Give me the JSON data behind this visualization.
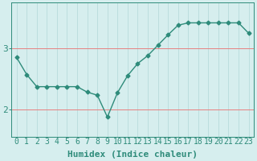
{
  "x": [
    0,
    1,
    2,
    3,
    4,
    5,
    6,
    7,
    8,
    9,
    10,
    11,
    12,
    13,
    14,
    15,
    16,
    17,
    18,
    19,
    20,
    21,
    22,
    23
  ],
  "y": [
    2.85,
    2.57,
    2.37,
    2.37,
    2.37,
    2.37,
    2.37,
    2.28,
    2.23,
    1.87,
    2.27,
    2.55,
    2.75,
    2.88,
    3.05,
    3.22,
    3.38,
    3.42,
    3.42,
    3.42,
    3.42,
    3.42,
    3.42,
    3.25
  ],
  "line_color": "#2e8b7a",
  "marker": "D",
  "bg_color": "#d6eeee",
  "grid_color_h": "#e88080",
  "grid_color_v": "#b8dcdc",
  "xlabel": "Humidex (Indice chaleur)",
  "yticks": [
    2,
    3
  ],
  "ylim": [
    1.55,
    3.75
  ],
  "xlim": [
    -0.5,
    23.5
  ],
  "xlabel_fontsize": 7,
  "tick_fontsize": 7,
  "line_width": 1.0,
  "markersize": 2.5
}
